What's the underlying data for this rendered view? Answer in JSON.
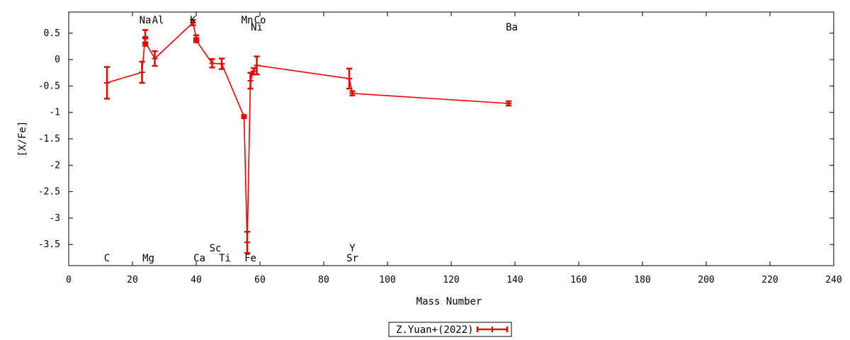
{
  "chart_data": {
    "type": "scatter",
    "xlabel": "Mass Number",
    "ylabel": "[X/Fe]",
    "xlim": [
      0,
      240
    ],
    "ylim": [
      -3.9,
      0.9
    ],
    "xticks": [
      0,
      20,
      40,
      60,
      80,
      100,
      120,
      140,
      160,
      180,
      200,
      220,
      240
    ],
    "yticks": [
      0.5,
      0,
      -0.5,
      -1,
      -1.5,
      -2,
      -2.5,
      -3,
      -3.5
    ],
    "ytick_labels": [
      "0.5",
      "0",
      "-0.5",
      "-1",
      "-1.5",
      "-2",
      "-2.5",
      "-3",
      "-3.5"
    ],
    "grid": false,
    "legend_position": "bottom-center",
    "color": "#ee0000",
    "series": [
      {
        "name": "Z.Yuan+(2022)",
        "connected": true,
        "points": [
          {
            "x": 12,
            "y": -0.44,
            "err": 0.3
          },
          {
            "x": 23,
            "y": -0.24,
            "err": 0.2
          },
          {
            "x": 24,
            "y": 0.43,
            "err": 0.13
          },
          {
            "x": 24,
            "y": 0.33,
            "err": 0.07
          },
          {
            "x": 27,
            "y": 0.02,
            "err": 0.14
          },
          {
            "x": 39,
            "y": 0.7,
            "err": 0.05
          },
          {
            "x": 40,
            "y": 0.41,
            "err": 0.05
          },
          {
            "x": 40,
            "y": 0.36,
            "err": 0.03
          },
          {
            "x": 45,
            "y": -0.07,
            "err": 0.08
          },
          {
            "x": 48,
            "y": -0.08,
            "err": 0.1
          },
          {
            "x": 55,
            "y": -1.08,
            "err": 0.03
          },
          {
            "x": 56,
            "y": -3.46,
            "err": 0.2
          },
          {
            "x": 57,
            "y": -0.4,
            "err": 0.15
          },
          {
            "x": 58,
            "y": -0.22,
            "err": 0.06
          },
          {
            "x": 59,
            "y": -0.11,
            "err": 0.17
          },
          {
            "x": 88,
            "y": -0.36,
            "err": 0.19
          },
          {
            "x": 89,
            "y": -0.64,
            "err": 0.04
          },
          {
            "x": 138,
            "y": -0.83,
            "err": 0.04
          }
        ]
      }
    ],
    "annotations": [
      {
        "text": "C",
        "x": 12,
        "row": "bottom"
      },
      {
        "text": "Mg",
        "x": 25,
        "row": "bottom"
      },
      {
        "text": "Ca",
        "x": 41,
        "row": "bottom"
      },
      {
        "text": "Ti",
        "x": 49,
        "row": "bottom"
      },
      {
        "text": "Fe",
        "x": 57,
        "row": "bottom"
      },
      {
        "text": "Sr",
        "x": 89,
        "row": "bottom"
      },
      {
        "text": "Sc",
        "x": 46,
        "row": "bottom-upper"
      },
      {
        "text": "Y",
        "x": 89,
        "row": "bottom-upper"
      },
      {
        "text": "Na",
        "x": 24,
        "row": "top"
      },
      {
        "text": "Al",
        "x": 28,
        "row": "top"
      },
      {
        "text": "K",
        "x": 39,
        "row": "top"
      },
      {
        "text": "Mn",
        "x": 56,
        "row": "top"
      },
      {
        "text": "Co",
        "x": 60,
        "row": "top"
      },
      {
        "text": "Ni",
        "x": 59,
        "row": "top-lower"
      },
      {
        "text": "Ba",
        "x": 139,
        "row": "top-lower"
      }
    ]
  }
}
